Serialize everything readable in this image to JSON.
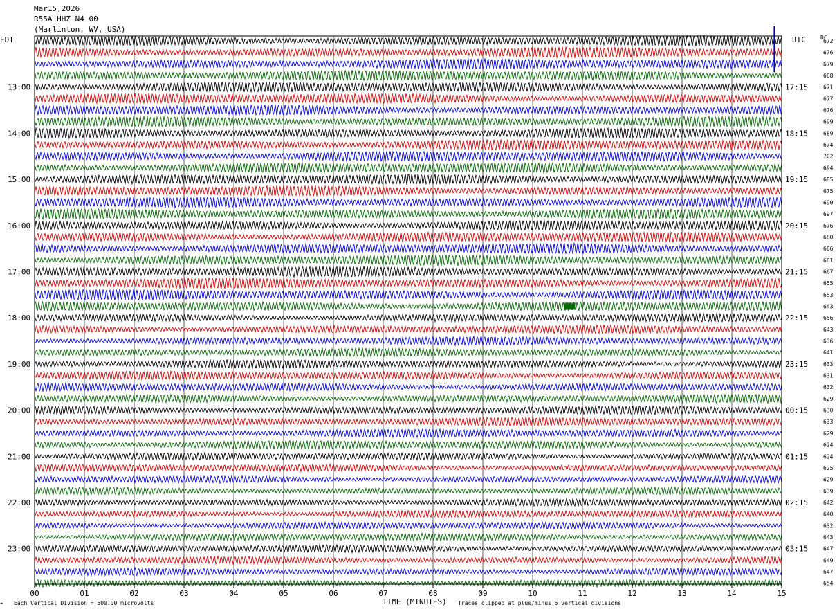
{
  "header": {
    "date": "Mar15,2026",
    "channel": "R55A HHZ N4 00",
    "location": "(Marlinton, WV, USA)"
  },
  "chart_data": {
    "type": "line",
    "title": "Mar15,2026",
    "subtitle": "R55A HHZ N4 00",
    "location": "(Marlinton, WV, USA)",
    "left_timezone": "EDT",
    "right_timezone": "UTC",
    "dc_label": "DC",
    "xlabel": "TIME (MINUTES)",
    "xlim": [
      0,
      15
    ],
    "x_ticks": [
      "00",
      "01",
      "02",
      "03",
      "04",
      "05",
      "06",
      "07",
      "08",
      "09",
      "10",
      "11",
      "12",
      "13",
      "14",
      "15"
    ],
    "rows_per_hour": 4,
    "trace_colors": [
      "#000000",
      "#d40000",
      "#0000e0",
      "#006600"
    ],
    "edt_labels": [
      "13:00",
      "14:00",
      "15:00",
      "16:00",
      "17:00",
      "18:00",
      "19:00",
      "20:00",
      "21:00",
      "22:00",
      "23:00"
    ],
    "utc_labels": [
      "17:15",
      "18:15",
      "19:15",
      "20:15",
      "21:15",
      "22:15",
      "23:15",
      "00:15",
      "01:15",
      "02:15",
      "03:15"
    ],
    "dc_values": [
      672,
      676,
      679,
      668,
      671,
      677,
      676,
      699,
      689,
      674,
      702,
      694,
      685,
      675,
      690,
      697,
      676,
      680,
      666,
      661,
      667,
      655,
      653,
      643,
      656,
      643,
      636,
      641,
      633,
      631,
      632,
      629,
      630,
      633,
      629,
      624,
      624,
      625,
      629,
      639,
      642,
      640,
      632,
      643,
      647,
      649,
      647,
      654
    ],
    "events": [
      {
        "row": 2,
        "minute": 14.85,
        "note": "spike"
      },
      {
        "row": 23,
        "minute": 10.75,
        "note": "burst"
      }
    ],
    "footer_left": "Each Vertical Division =  500.00 microvolts",
    "footer_right": "Traces clipped at plus/minus 5 vertical divisions"
  }
}
